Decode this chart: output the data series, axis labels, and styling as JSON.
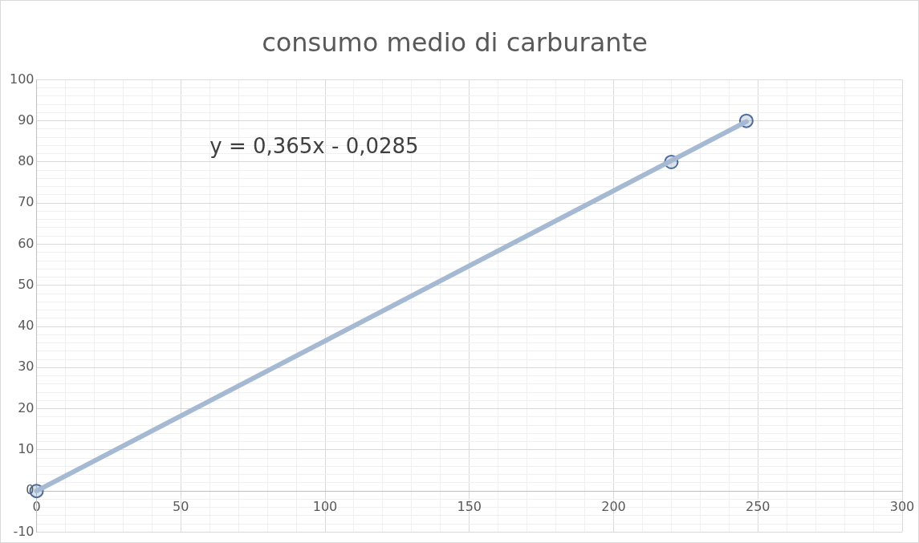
{
  "chart_data": {
    "type": "scatter",
    "title": "consumo medio di carburante",
    "xlim": [
      0,
      300
    ],
    "xticks": [
      0,
      {
        "value": 10,
        "label": null
      },
      {
        "value": 20,
        "label": null
      },
      {
        "value": 30,
        "label": null
      },
      {
        "value": 40,
        "label": null
      },
      50,
      {
        "value": 60,
        "label": null
      },
      {
        "value": 70,
        "label": null
      },
      {
        "value": 80,
        "label": null
      },
      {
        "value": 90,
        "label": null
      },
      100,
      {
        "value": 110,
        "label": null
      },
      {
        "value": 120,
        "label": null
      },
      {
        "value": 130,
        "label": null
      },
      {
        "value": 140,
        "label": null
      },
      150,
      {
        "value": 160,
        "label": null
      },
      {
        "value": 170,
        "label": null
      },
      {
        "value": 180,
        "label": null
      },
      {
        "value": 190,
        "label": null
      },
      200,
      {
        "value": 210,
        "label": null
      },
      {
        "value": 220,
        "label": null
      },
      {
        "value": 230,
        "label": null
      },
      {
        "value": 240,
        "label": null
      },
      250,
      {
        "value": 260,
        "label": null
      },
      {
        "value": 270,
        "label": null
      },
      {
        "value": 280,
        "label": null
      },
      {
        "value": 290,
        "label": null
      },
      300
    ],
    "ylim": [
      -10,
      100
    ],
    "yticks": [
      -10,
      {
        "value": -8,
        "label": null
      },
      {
        "value": -6,
        "label": null
      },
      {
        "value": -4,
        "label": null
      },
      {
        "value": -2,
        "label": null
      },
      0,
      {
        "value": 2,
        "label": null
      },
      {
        "value": 4,
        "label": null
      },
      {
        "value": 6,
        "label": null
      },
      {
        "value": 8,
        "label": null
      },
      10,
      {
        "value": 12,
        "label": null
      },
      {
        "value": 14,
        "label": null
      },
      {
        "value": 16,
        "label": null
      },
      {
        "value": 18,
        "label": null
      },
      20,
      {
        "value": 22,
        "label": null
      },
      {
        "value": 24,
        "label": null
      },
      {
        "value": 26,
        "label": null
      },
      {
        "value": 28,
        "label": null
      },
      30,
      {
        "value": 32,
        "label": null
      },
      {
        "value": 34,
        "label": null
      },
      {
        "value": 36,
        "label": null
      },
      {
        "value": 38,
        "label": null
      },
      40,
      {
        "value": 42,
        "label": null
      },
      {
        "value": 44,
        "label": null
      },
      {
        "value": 46,
        "label": null
      },
      {
        "value": 48,
        "label": null
      },
      50,
      {
        "value": 52,
        "label": null
      },
      {
        "value": 54,
        "label": null
      },
      {
        "value": 56,
        "label": null
      },
      {
        "value": 58,
        "label": null
      },
      60,
      {
        "value": 62,
        "label": null
      },
      {
        "value": 64,
        "label": null
      },
      {
        "value": 66,
        "label": null
      },
      {
        "value": 68,
        "label": null
      },
      70,
      {
        "value": 72,
        "label": null
      },
      {
        "value": 74,
        "label": null
      },
      {
        "value": 76,
        "label": null
      },
      {
        "value": 78,
        "label": null
      },
      80,
      {
        "value": 82,
        "label": null
      },
      {
        "value": 84,
        "label": null
      },
      {
        "value": 86,
        "label": null
      },
      {
        "value": 88,
        "label": null
      },
      90,
      {
        "value": 92,
        "label": null
      },
      {
        "value": 94,
        "label": null
      },
      {
        "value": 96,
        "label": null
      },
      {
        "value": 98,
        "label": null
      },
      100
    ],
    "grid": true,
    "legend": false,
    "series": [
      {
        "type": "line",
        "color": "#a6b9d3",
        "x": [
          0,
          246
        ],
        "values": [
          0,
          89.8
        ],
        "marker": "none",
        "line_style": "solid"
      },
      {
        "color": "#4a6b9c",
        "x": [
          0,
          220,
          246
        ],
        "values": [
          0,
          80,
          90
        ],
        "marker": "circle"
      }
    ],
    "annotations": [
      "y = 0,365x - 0,0285"
    ]
  }
}
